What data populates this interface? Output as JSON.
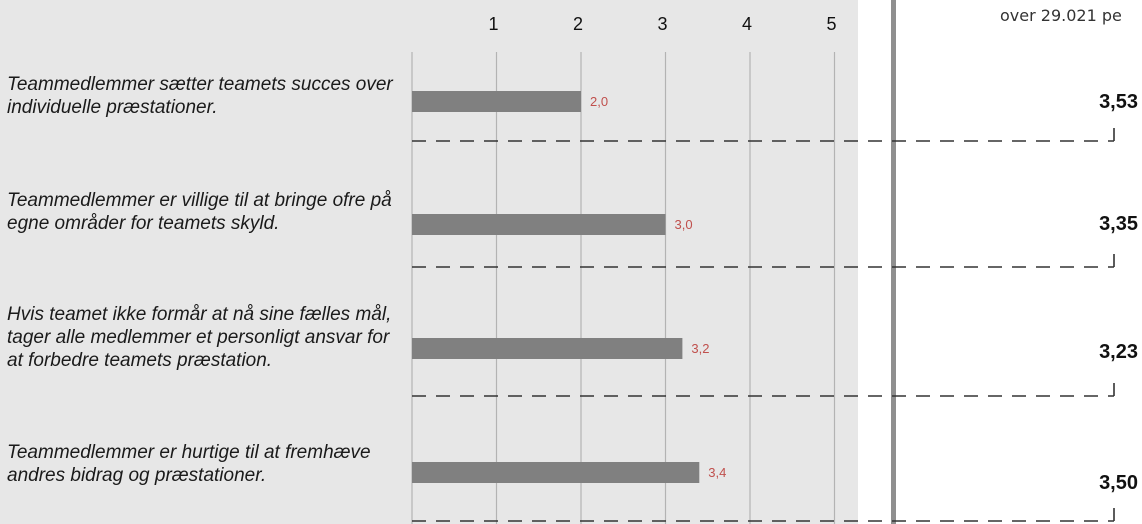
{
  "header_note": "over 29.021 pe",
  "colors": {
    "bar": "#808080",
    "value_label": "#c0504d",
    "grid": "#b3b3b3",
    "dash": "#333333",
    "panel": "#e7e7e7",
    "divider": "#8f8f8f"
  },
  "chart_data": {
    "type": "bar",
    "orientation": "horizontal",
    "x_ticks": [
      "1",
      "2",
      "3",
      "4",
      "5"
    ],
    "xlim": [
      0,
      5
    ],
    "grid": true,
    "categories": [
      "Teammedlemmer sætter teamets succes over individuelle præstationer.",
      "Teammedlemmer er villige til at bringe ofre på egne områder for teamets skyld.",
      "Hvis teamet ikke formår at nå sine fælles mål, tager alle medlemmer et personligt ansvar for at forbedre teamets præstation.",
      "Teammedlemmer er hurtige til at fremhæve andres bidrag og præstationer."
    ],
    "values": [
      2.0,
      3.0,
      3.2,
      3.4
    ],
    "value_labels": [
      "2,0",
      "3,0",
      "3,2",
      "3,4"
    ],
    "benchmark_labels": [
      "3,53",
      "3,35",
      "3,23",
      "3,50"
    ],
    "benchmarks": [
      3.53,
      3.35,
      3.23,
      3.5
    ]
  }
}
